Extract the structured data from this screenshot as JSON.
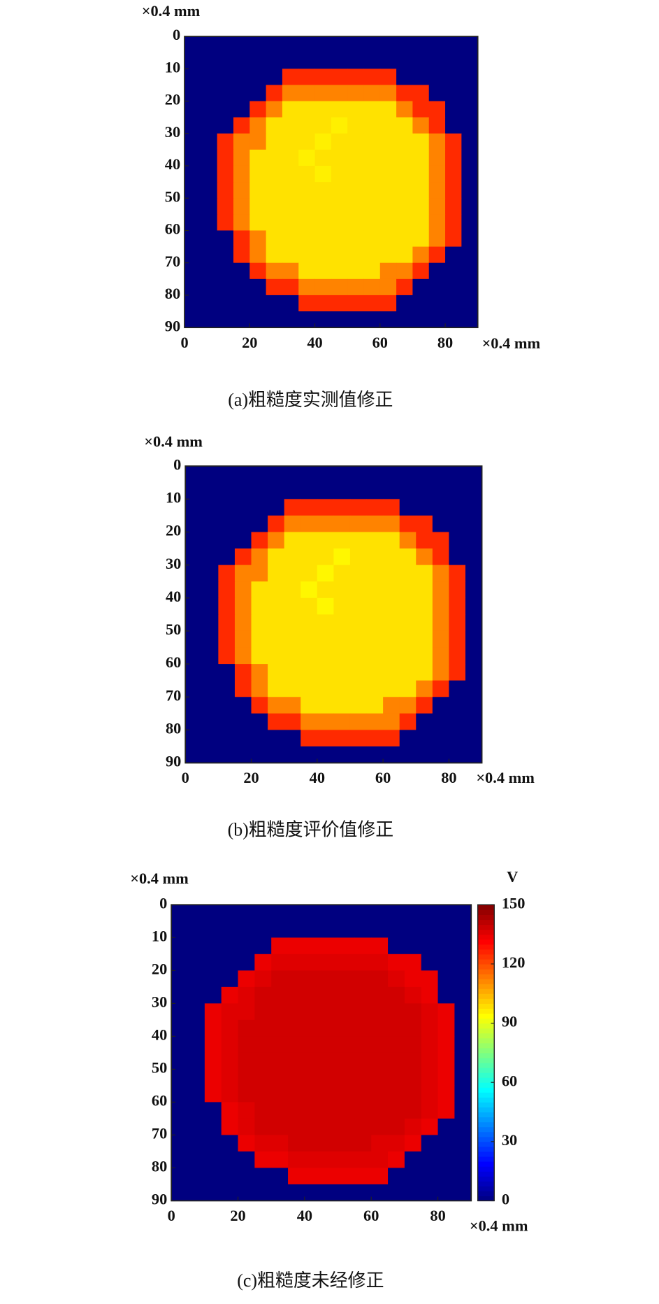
{
  "chart_data": [
    {
      "type": "heatmap",
      "caption": "(a)粗糙度实测值修正",
      "x_label": "×0.4 mm",
      "y_label": "×0.4 mm",
      "xlim": [
        0,
        90
      ],
      "ylim": [
        0,
        90
      ],
      "y_reversed": true,
      "xticks": [
        0,
        20,
        40,
        60,
        80
      ],
      "yticks": [
        0,
        10,
        20,
        30,
        40,
        50,
        60,
        70,
        80,
        90
      ],
      "colormap": "jet",
      "clim": [
        0,
        150
      ],
      "x": [
        2.5,
        7.5,
        12.5,
        17.5,
        22.5,
        27.5,
        32.5,
        37.5,
        42.5,
        47.5,
        52.5,
        57.5,
        62.5,
        67.5,
        72.5,
        77.5,
        82.5,
        87.5
      ],
      "y": [
        2.5,
        7.5,
        12.5,
        17.5,
        22.5,
        27.5,
        32.5,
        37.5,
        42.5,
        47.5,
        52.5,
        57.5,
        62.5,
        67.5,
        72.5,
        77.5,
        82.5,
        87.5
      ],
      "values": [
        [
          0,
          0,
          0,
          0,
          0,
          0,
          0,
          0,
          0,
          0,
          0,
          0,
          0,
          0,
          0,
          0,
          0,
          0
        ],
        [
          0,
          0,
          0,
          0,
          0,
          0,
          0,
          0,
          0,
          0,
          0,
          0,
          0,
          0,
          0,
          0,
          0,
          0
        ],
        [
          0,
          0,
          0,
          0,
          0,
          0,
          125,
          125,
          125,
          125,
          125,
          125,
          125,
          0,
          0,
          0,
          0,
          0
        ],
        [
          0,
          0,
          0,
          0,
          0,
          125,
          112,
          112,
          112,
          112,
          112,
          112,
          112,
          125,
          125,
          0,
          0,
          0
        ],
        [
          0,
          0,
          0,
          0,
          125,
          112,
          98,
          98,
          98,
          98,
          98,
          98,
          98,
          112,
          125,
          125,
          0,
          0
        ],
        [
          0,
          0,
          0,
          125,
          112,
          98,
          98,
          98,
          98,
          96,
          98,
          98,
          98,
          98,
          112,
          125,
          0,
          0
        ],
        [
          0,
          0,
          125,
          112,
          112,
          98,
          98,
          98,
          96,
          98,
          98,
          98,
          98,
          98,
          98,
          112,
          125,
          0
        ],
        [
          0,
          0,
          125,
          112,
          98,
          98,
          98,
          96,
          98,
          98,
          98,
          98,
          98,
          98,
          98,
          112,
          125,
          0
        ],
        [
          0,
          0,
          125,
          112,
          98,
          98,
          98,
          98,
          96,
          98,
          98,
          98,
          98,
          98,
          98,
          112,
          125,
          0
        ],
        [
          0,
          0,
          125,
          112,
          98,
          98,
          98,
          98,
          98,
          98,
          98,
          98,
          98,
          98,
          98,
          112,
          125,
          0
        ],
        [
          0,
          0,
          125,
          112,
          98,
          98,
          98,
          98,
          98,
          98,
          98,
          98,
          98,
          98,
          98,
          112,
          125,
          0
        ],
        [
          0,
          0,
          125,
          112,
          98,
          98,
          98,
          98,
          98,
          98,
          98,
          98,
          98,
          98,
          98,
          112,
          125,
          0
        ],
        [
          0,
          0,
          0,
          125,
          112,
          98,
          98,
          98,
          98,
          98,
          98,
          98,
          98,
          98,
          98,
          112,
          125,
          0
        ],
        [
          0,
          0,
          0,
          125,
          112,
          98,
          98,
          98,
          98,
          98,
          98,
          98,
          98,
          98,
          112,
          125,
          0,
          0
        ],
        [
          0,
          0,
          0,
          0,
          125,
          112,
          112,
          98,
          98,
          98,
          98,
          98,
          112,
          112,
          125,
          0,
          0,
          0
        ],
        [
          0,
          0,
          0,
          0,
          0,
          125,
          125,
          112,
          112,
          112,
          112,
          112,
          112,
          125,
          0,
          0,
          0,
          0
        ],
        [
          0,
          0,
          0,
          0,
          0,
          0,
          0,
          125,
          125,
          125,
          125,
          125,
          125,
          0,
          0,
          0,
          0,
          0
        ],
        [
          0,
          0,
          0,
          0,
          0,
          0,
          0,
          0,
          0,
          0,
          0,
          0,
          0,
          0,
          0,
          0,
          0,
          0
        ]
      ]
    },
    {
      "type": "heatmap",
      "caption": "(b)粗糙度评价值修正",
      "x_label": "×0.4 mm",
      "y_label": "×0.4 mm",
      "xlim": [
        0,
        90
      ],
      "ylim": [
        0,
        90
      ],
      "y_reversed": true,
      "xticks": [
        0,
        20,
        40,
        60,
        80
      ],
      "yticks": [
        0,
        10,
        20,
        30,
        40,
        50,
        60,
        70,
        80,
        90
      ],
      "colormap": "jet",
      "clim": [
        0,
        150
      ],
      "x": [
        2.5,
        7.5,
        12.5,
        17.5,
        22.5,
        27.5,
        32.5,
        37.5,
        42.5,
        47.5,
        52.5,
        57.5,
        62.5,
        67.5,
        72.5,
        77.5,
        82.5,
        87.5
      ],
      "y": [
        2.5,
        7.5,
        12.5,
        17.5,
        22.5,
        27.5,
        32.5,
        37.5,
        42.5,
        47.5,
        52.5,
        57.5,
        62.5,
        67.5,
        72.5,
        77.5,
        82.5,
        87.5
      ],
      "values": [
        [
          0,
          0,
          0,
          0,
          0,
          0,
          0,
          0,
          0,
          0,
          0,
          0,
          0,
          0,
          0,
          0,
          0,
          0
        ],
        [
          0,
          0,
          0,
          0,
          0,
          0,
          0,
          0,
          0,
          0,
          0,
          0,
          0,
          0,
          0,
          0,
          0,
          0
        ],
        [
          0,
          0,
          0,
          0,
          0,
          0,
          125,
          125,
          125,
          125,
          125,
          125,
          125,
          0,
          0,
          0,
          0,
          0
        ],
        [
          0,
          0,
          0,
          0,
          0,
          125,
          112,
          112,
          112,
          112,
          112,
          112,
          112,
          125,
          125,
          0,
          0,
          0
        ],
        [
          0,
          0,
          0,
          0,
          125,
          112,
          98,
          98,
          98,
          98,
          98,
          98,
          98,
          112,
          125,
          125,
          0,
          0
        ],
        [
          0,
          0,
          0,
          125,
          112,
          98,
          98,
          98,
          98,
          95,
          98,
          98,
          98,
          98,
          112,
          125,
          0,
          0
        ],
        [
          0,
          0,
          125,
          112,
          112,
          98,
          98,
          98,
          95,
          98,
          98,
          98,
          98,
          98,
          98,
          112,
          125,
          0
        ],
        [
          0,
          0,
          125,
          112,
          98,
          98,
          98,
          95,
          98,
          98,
          98,
          98,
          98,
          98,
          98,
          112,
          125,
          0
        ],
        [
          0,
          0,
          125,
          112,
          98,
          98,
          98,
          98,
          95,
          98,
          98,
          98,
          98,
          98,
          98,
          112,
          125,
          0
        ],
        [
          0,
          0,
          125,
          112,
          98,
          98,
          98,
          98,
          98,
          98,
          98,
          98,
          98,
          98,
          98,
          112,
          125,
          0
        ],
        [
          0,
          0,
          125,
          112,
          98,
          98,
          98,
          98,
          98,
          98,
          98,
          98,
          98,
          98,
          98,
          112,
          125,
          0
        ],
        [
          0,
          0,
          125,
          112,
          98,
          98,
          98,
          98,
          98,
          98,
          98,
          98,
          98,
          98,
          98,
          112,
          125,
          0
        ],
        [
          0,
          0,
          0,
          125,
          112,
          98,
          98,
          98,
          98,
          98,
          98,
          98,
          98,
          98,
          98,
          112,
          125,
          0
        ],
        [
          0,
          0,
          0,
          125,
          112,
          98,
          98,
          98,
          98,
          98,
          98,
          98,
          98,
          98,
          112,
          125,
          0,
          0
        ],
        [
          0,
          0,
          0,
          0,
          125,
          112,
          112,
          98,
          98,
          98,
          98,
          98,
          112,
          112,
          125,
          0,
          0,
          0
        ],
        [
          0,
          0,
          0,
          0,
          0,
          125,
          125,
          112,
          112,
          112,
          112,
          112,
          112,
          125,
          0,
          0,
          0,
          0
        ],
        [
          0,
          0,
          0,
          0,
          0,
          0,
          0,
          125,
          125,
          125,
          125,
          125,
          125,
          0,
          0,
          0,
          0,
          0
        ],
        [
          0,
          0,
          0,
          0,
          0,
          0,
          0,
          0,
          0,
          0,
          0,
          0,
          0,
          0,
          0,
          0,
          0,
          0
        ]
      ]
    },
    {
      "type": "heatmap",
      "caption": "(c)粗糙度未经修正",
      "x_label": "×0.4 mm",
      "y_label": "×0.4 mm",
      "xlim": [
        0,
        90
      ],
      "ylim": [
        0,
        90
      ],
      "y_reversed": true,
      "xticks": [
        0,
        20,
        40,
        60,
        80
      ],
      "yticks": [
        0,
        10,
        20,
        30,
        40,
        50,
        60,
        70,
        80,
        90
      ],
      "colormap": "jet",
      "clim": [
        0,
        150
      ],
      "colorbar": {
        "label": "V",
        "ticks": [
          0,
          30,
          60,
          90,
          120,
          150
        ]
      },
      "x": [
        2.5,
        7.5,
        12.5,
        17.5,
        22.5,
        27.5,
        32.5,
        37.5,
        42.5,
        47.5,
        52.5,
        57.5,
        62.5,
        67.5,
        72.5,
        77.5,
        82.5,
        87.5
      ],
      "y": [
        2.5,
        7.5,
        12.5,
        17.5,
        22.5,
        27.5,
        32.5,
        37.5,
        42.5,
        47.5,
        52.5,
        57.5,
        62.5,
        67.5,
        72.5,
        77.5,
        82.5,
        87.5
      ],
      "values": [
        [
          0,
          0,
          0,
          0,
          0,
          0,
          0,
          0,
          0,
          0,
          0,
          0,
          0,
          0,
          0,
          0,
          0,
          0
        ],
        [
          0,
          0,
          0,
          0,
          0,
          0,
          0,
          0,
          0,
          0,
          0,
          0,
          0,
          0,
          0,
          0,
          0,
          0
        ],
        [
          0,
          0,
          0,
          0,
          0,
          0,
          134,
          134,
          134,
          134,
          134,
          134,
          134,
          0,
          0,
          0,
          0,
          0
        ],
        [
          0,
          0,
          0,
          0,
          0,
          134,
          136,
          136,
          136,
          136,
          136,
          136,
          136,
          134,
          134,
          0,
          0,
          0
        ],
        [
          0,
          0,
          0,
          0,
          134,
          136,
          138,
          138,
          138,
          138,
          138,
          138,
          138,
          136,
          134,
          134,
          0,
          0
        ],
        [
          0,
          0,
          0,
          134,
          136,
          138,
          138,
          138,
          138,
          138,
          138,
          138,
          138,
          138,
          136,
          134,
          0,
          0
        ],
        [
          0,
          0,
          134,
          136,
          136,
          138,
          138,
          138,
          138,
          138,
          138,
          138,
          138,
          138,
          138,
          136,
          134,
          0
        ],
        [
          0,
          0,
          134,
          136,
          138,
          138,
          138,
          138,
          138,
          138,
          138,
          138,
          138,
          138,
          138,
          136,
          134,
          0
        ],
        [
          0,
          0,
          134,
          136,
          138,
          138,
          138,
          138,
          138,
          138,
          138,
          138,
          138,
          138,
          138,
          136,
          134,
          0
        ],
        [
          0,
          0,
          134,
          136,
          138,
          138,
          138,
          138,
          138,
          138,
          138,
          138,
          138,
          138,
          138,
          136,
          134,
          0
        ],
        [
          0,
          0,
          134,
          136,
          138,
          138,
          138,
          138,
          138,
          138,
          138,
          138,
          138,
          138,
          138,
          136,
          134,
          0
        ],
        [
          0,
          0,
          134,
          136,
          138,
          138,
          138,
          138,
          138,
          138,
          138,
          138,
          138,
          138,
          138,
          136,
          134,
          0
        ],
        [
          0,
          0,
          0,
          134,
          136,
          138,
          138,
          138,
          138,
          138,
          138,
          138,
          138,
          138,
          138,
          136,
          134,
          0
        ],
        [
          0,
          0,
          0,
          134,
          136,
          138,
          138,
          138,
          138,
          138,
          138,
          138,
          138,
          138,
          136,
          134,
          0,
          0
        ],
        [
          0,
          0,
          0,
          0,
          134,
          136,
          136,
          138,
          138,
          138,
          138,
          138,
          136,
          136,
          134,
          0,
          0,
          0
        ],
        [
          0,
          0,
          0,
          0,
          0,
          134,
          134,
          136,
          136,
          136,
          136,
          136,
          136,
          134,
          0,
          0,
          0,
          0
        ],
        [
          0,
          0,
          0,
          0,
          0,
          0,
          0,
          134,
          134,
          134,
          134,
          134,
          134,
          0,
          0,
          0,
          0,
          0
        ],
        [
          0,
          0,
          0,
          0,
          0,
          0,
          0,
          0,
          0,
          0,
          0,
          0,
          0,
          0,
          0,
          0,
          0,
          0
        ]
      ]
    }
  ]
}
